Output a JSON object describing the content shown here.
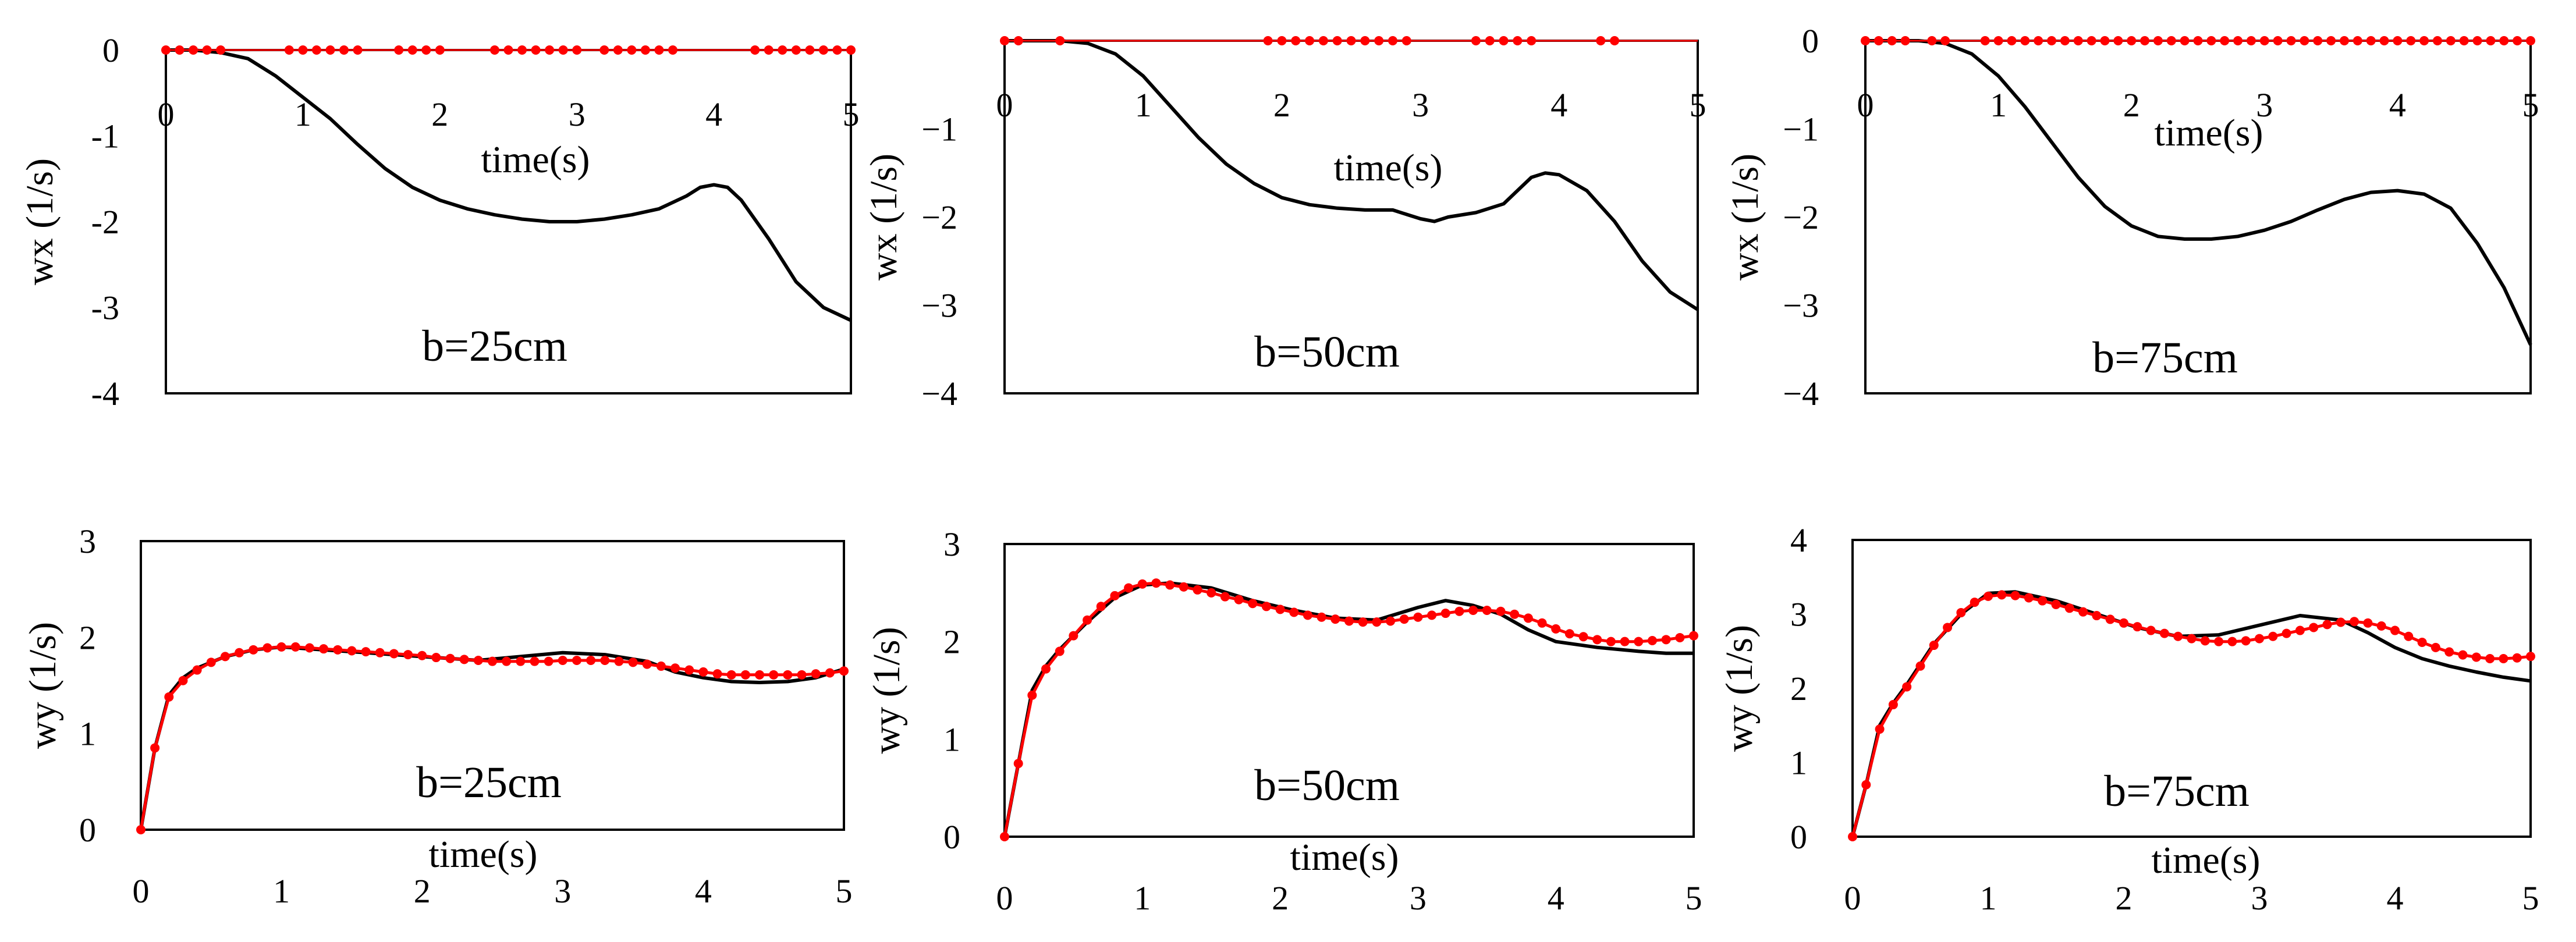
{
  "colors": {
    "measured": "#000000",
    "simulated": "#ff0000",
    "background": "#ffffff"
  },
  "chart_data": [
    {
      "type": "line",
      "annotation": "b=25cm",
      "xlabel": "time(s)",
      "ylabel": "wx (1/s)",
      "xlim": [
        0,
        5
      ],
      "ylim": [
        -4,
        0
      ],
      "xticks": [
        "0",
        "1",
        "2",
        "3",
        "4",
        "5"
      ],
      "yticks": [
        "0",
        "-1",
        "-2",
        "-3",
        "-4"
      ],
      "series": [
        {
          "name": "measured",
          "x": [
            0,
            0.2,
            0.4,
            0.6,
            0.8,
            1.0,
            1.2,
            1.4,
            1.6,
            1.8,
            2.0,
            2.2,
            2.4,
            2.6,
            2.8,
            3.0,
            3.2,
            3.4,
            3.6,
            3.8,
            3.9,
            4.0,
            4.1,
            4.2,
            4.4,
            4.6,
            4.8,
            5.0
          ],
          "y": [
            0,
            0,
            -0.03,
            -0.1,
            -0.3,
            -0.55,
            -0.8,
            -1.1,
            -1.38,
            -1.6,
            -1.75,
            -1.85,
            -1.92,
            -1.97,
            -2.0,
            -2.0,
            -1.97,
            -1.92,
            -1.85,
            -1.7,
            -1.6,
            -1.57,
            -1.6,
            -1.75,
            -2.2,
            -2.7,
            -3.0,
            -3.15
          ]
        },
        {
          "name": "simulated",
          "x": [
            0,
            0.1,
            0.2,
            0.3,
            0.4,
            0.9,
            1.0,
            1.1,
            1.2,
            1.3,
            1.4,
            1.7,
            1.8,
            1.9,
            2.0,
            2.4,
            2.5,
            2.6,
            2.7,
            2.8,
            2.9,
            3.0,
            3.2,
            3.3,
            3.4,
            3.5,
            3.6,
            3.7,
            4.3,
            4.4,
            4.5,
            4.6,
            4.7,
            4.8,
            4.9,
            5.0
          ],
          "y": [
            0,
            0,
            0,
            0,
            0,
            0,
            0,
            0,
            0,
            0,
            0,
            0,
            0,
            0,
            0,
            0,
            0,
            0,
            0,
            0,
            0,
            0,
            0,
            0,
            0,
            0,
            0,
            0,
            0,
            0,
            0,
            0,
            0,
            0,
            0,
            0
          ]
        }
      ]
    },
    {
      "type": "line",
      "annotation": "b=50cm",
      "xlabel": "time(s)",
      "ylabel": "wx (1/s)",
      "xlim": [
        0,
        5
      ],
      "ylim": [
        -4,
        0
      ],
      "xticks": [
        "0",
        "1",
        "2",
        "3",
        "4",
        "5"
      ],
      "yticks": [
        "−1",
        "−2",
        "−3",
        "−4"
      ],
      "series": [
        {
          "name": "measured",
          "x": [
            0,
            0.2,
            0.4,
            0.6,
            0.8,
            1.0,
            1.2,
            1.4,
            1.6,
            1.8,
            2.0,
            2.2,
            2.4,
            2.6,
            2.8,
            2.9,
            3.0,
            3.1,
            3.2,
            3.4,
            3.6,
            3.7,
            3.8,
            3.9,
            4.0,
            4.2,
            4.4,
            4.6,
            4.8,
            5.0
          ],
          "y": [
            0,
            0,
            0,
            -0.03,
            -0.15,
            -0.4,
            -0.75,
            -1.1,
            -1.4,
            -1.62,
            -1.78,
            -1.86,
            -1.9,
            -1.92,
            -1.92,
            -1.97,
            -2.02,
            -2.05,
            -2.0,
            -1.95,
            -1.85,
            -1.7,
            -1.55,
            -1.5,
            -1.52,
            -1.7,
            -2.05,
            -2.5,
            -2.85,
            -3.05
          ]
        },
        {
          "name": "simulated",
          "x": [
            0,
            0.1,
            0.4,
            1.9,
            2.0,
            2.1,
            2.2,
            2.3,
            2.4,
            2.5,
            2.6,
            2.7,
            2.8,
            2.9,
            3.4,
            3.5,
            3.6,
            3.7,
            3.8,
            4.3,
            4.4
          ],
          "y": [
            0,
            0,
            0,
            0,
            0,
            0,
            0,
            0,
            0,
            0,
            0,
            0,
            0,
            0,
            0,
            0,
            0,
            0,
            0,
            0,
            0
          ]
        }
      ]
    },
    {
      "type": "line",
      "annotation": "b=75cm",
      "xlabel": "time(s)",
      "ylabel": "wx (1/s)",
      "xlim": [
        0,
        5
      ],
      "ylim": [
        -4,
        0
      ],
      "xticks": [
        "0",
        "1",
        "2",
        "3",
        "4",
        "5"
      ],
      "yticks": [
        "0",
        "−1",
        "−2",
        "−3",
        "−4"
      ],
      "series": [
        {
          "name": "measured",
          "x": [
            0,
            0.2,
            0.4,
            0.6,
            0.8,
            1.0,
            1.2,
            1.4,
            1.6,
            1.8,
            2.0,
            2.2,
            2.4,
            2.6,
            2.8,
            3.0,
            3.2,
            3.4,
            3.6,
            3.8,
            4.0,
            4.2,
            4.4,
            4.6,
            4.8,
            5.0
          ],
          "y": [
            0,
            0,
            0,
            -0.03,
            -0.15,
            -0.4,
            -0.75,
            -1.15,
            -1.55,
            -1.88,
            -2.1,
            -2.22,
            -2.25,
            -2.25,
            -2.22,
            -2.15,
            -2.05,
            -1.92,
            -1.8,
            -1.72,
            -1.7,
            -1.74,
            -1.9,
            -2.3,
            -2.8,
            -3.45
          ]
        },
        {
          "name": "simulated",
          "x": [
            0,
            0.1,
            0.2,
            0.3,
            0.5,
            0.6,
            0.9,
            1.0,
            1.1,
            1.2,
            1.3,
            1.4,
            1.5,
            1.6,
            1.7,
            1.8,
            1.9,
            2.0,
            2.1,
            2.2,
            2.3,
            2.4,
            2.5,
            2.6,
            2.7,
            2.8,
            2.9,
            3.0,
            3.1,
            3.2,
            3.3,
            3.4,
            3.5,
            3.6,
            3.7,
            3.8,
            3.9,
            4.0,
            4.1,
            4.2,
            4.3,
            4.4,
            4.5,
            4.6,
            4.7,
            4.8,
            4.9,
            5.0
          ],
          "y": [
            0,
            0,
            0,
            0,
            0,
            0,
            0,
            0,
            0,
            0,
            0,
            0,
            0,
            0,
            0,
            0,
            0,
            0,
            0,
            0,
            0,
            0,
            0,
            0,
            0,
            0,
            0,
            0,
            0,
            0,
            0,
            0,
            0,
            0,
            0,
            0,
            0,
            0,
            0,
            0,
            0,
            0,
            0,
            0,
            0,
            0,
            0,
            0
          ]
        }
      ]
    },
    {
      "type": "line",
      "annotation": "b=25cm",
      "xlabel": "time(s)",
      "ylabel": "wy (1/s)",
      "xlim": [
        0,
        5
      ],
      "ylim": [
        0,
        3
      ],
      "xticks": [
        "0",
        "1",
        "2",
        "3",
        "4",
        "5"
      ],
      "yticks": [
        "0",
        "1",
        "2",
        "3"
      ],
      "series": [
        {
          "name": "measured",
          "x": [
            0,
            0.1,
            0.2,
            0.3,
            0.4,
            0.6,
            0.8,
            1.0,
            1.2,
            1.5,
            1.8,
            2.1,
            2.4,
            2.7,
            3.0,
            3.3,
            3.6,
            3.8,
            4.0,
            4.2,
            4.4,
            4.6,
            4.8,
            5.0
          ],
          "y": [
            0,
            0.85,
            1.4,
            1.58,
            1.68,
            1.8,
            1.87,
            1.9,
            1.88,
            1.85,
            1.82,
            1.79,
            1.76,
            1.8,
            1.84,
            1.82,
            1.75,
            1.64,
            1.58,
            1.54,
            1.53,
            1.54,
            1.58,
            1.67
          ]
        },
        {
          "name": "simulated",
          "x": [
            0,
            0.1,
            0.2,
            0.3,
            0.4,
            0.5,
            0.6,
            0.7,
            0.8,
            0.9,
            1.0,
            1.1,
            1.2,
            1.3,
            1.4,
            1.5,
            1.6,
            1.7,
            1.8,
            1.9,
            2.0,
            2.1,
            2.2,
            2.3,
            2.4,
            2.5,
            2.6,
            2.7,
            2.8,
            2.9,
            3.0,
            3.1,
            3.2,
            3.3,
            3.4,
            3.5,
            3.6,
            3.7,
            3.8,
            3.9,
            4.0,
            4.1,
            4.2,
            4.3,
            4.4,
            4.5,
            4.6,
            4.7,
            4.8,
            4.9,
            5.0
          ],
          "y": [
            0,
            0.85,
            1.38,
            1.55,
            1.66,
            1.74,
            1.8,
            1.84,
            1.87,
            1.89,
            1.9,
            1.9,
            1.89,
            1.88,
            1.87,
            1.86,
            1.85,
            1.84,
            1.83,
            1.82,
            1.81,
            1.79,
            1.78,
            1.77,
            1.76,
            1.75,
            1.75,
            1.75,
            1.75,
            1.75,
            1.76,
            1.76,
            1.76,
            1.76,
            1.75,
            1.74,
            1.72,
            1.7,
            1.68,
            1.66,
            1.64,
            1.62,
            1.61,
            1.61,
            1.61,
            1.61,
            1.61,
            1.61,
            1.62,
            1.63,
            1.65
          ]
        }
      ]
    },
    {
      "type": "line",
      "annotation": "b=50cm",
      "xlabel": "time(s)",
      "ylabel": "wy (1/s)",
      "xlim": [
        0,
        5
      ],
      "ylim": [
        0,
        3
      ],
      "xticks": [
        "0",
        "1",
        "2",
        "3",
        "4",
        "5"
      ],
      "yticks": [
        "0",
        "1",
        "2",
        "3"
      ],
      "series": [
        {
          "name": "measured",
          "x": [
            0,
            0.1,
            0.2,
            0.3,
            0.4,
            0.6,
            0.8,
            1.0,
            1.2,
            1.5,
            1.8,
            2.1,
            2.4,
            2.7,
            3.0,
            3.2,
            3.4,
            3.6,
            3.8,
            4.0,
            4.3,
            4.6,
            4.8,
            5.0
          ],
          "y": [
            0,
            0.75,
            1.5,
            1.75,
            1.92,
            2.2,
            2.45,
            2.58,
            2.6,
            2.55,
            2.42,
            2.32,
            2.24,
            2.22,
            2.35,
            2.42,
            2.37,
            2.28,
            2.12,
            2.0,
            1.94,
            1.9,
            1.88,
            1.88
          ]
        },
        {
          "name": "simulated",
          "x": [
            0,
            0.1,
            0.2,
            0.3,
            0.4,
            0.5,
            0.6,
            0.7,
            0.8,
            0.9,
            1.0,
            1.1,
            1.2,
            1.3,
            1.4,
            1.5,
            1.6,
            1.7,
            1.8,
            1.9,
            2.0,
            2.1,
            2.2,
            2.3,
            2.4,
            2.5,
            2.6,
            2.7,
            2.8,
            2.9,
            3.0,
            3.1,
            3.2,
            3.3,
            3.4,
            3.5,
            3.6,
            3.7,
            3.8,
            3.9,
            4.0,
            4.1,
            4.2,
            4.3,
            4.4,
            4.5,
            4.6,
            4.7,
            4.8,
            4.9,
            5.0
          ],
          "y": [
            0,
            0.75,
            1.45,
            1.72,
            1.9,
            2.06,
            2.22,
            2.36,
            2.47,
            2.55,
            2.59,
            2.6,
            2.58,
            2.56,
            2.53,
            2.5,
            2.46,
            2.43,
            2.39,
            2.36,
            2.33,
            2.3,
            2.27,
            2.25,
            2.23,
            2.21,
            2.2,
            2.2,
            2.21,
            2.23,
            2.25,
            2.27,
            2.29,
            2.31,
            2.32,
            2.32,
            2.31,
            2.28,
            2.24,
            2.19,
            2.13,
            2.08,
            2.05,
            2.02,
            2.0,
            2.0,
            2.0,
            2.01,
            2.02,
            2.04,
            2.06
          ]
        }
      ]
    },
    {
      "type": "line",
      "annotation": "b=75cm",
      "xlabel": "time(s)",
      "ylabel": "wy (1/s)",
      "xlim": [
        0,
        5
      ],
      "ylim": [
        0,
        4
      ],
      "xticks": [
        "0",
        "1",
        "2",
        "3",
        "4",
        "5"
      ],
      "yticks": [
        "0",
        "1",
        "2",
        "3",
        "4"
      ],
      "series": [
        {
          "name": "measured",
          "x": [
            0,
            0.1,
            0.2,
            0.3,
            0.4,
            0.6,
            0.8,
            1.0,
            1.2,
            1.5,
            1.8,
            2.1,
            2.4,
            2.7,
            3.0,
            3.3,
            3.6,
            3.8,
            4.0,
            4.2,
            4.4,
            4.6,
            4.8,
            5.0
          ],
          "y": [
            0,
            0.7,
            1.5,
            1.8,
            2.05,
            2.6,
            3.0,
            3.28,
            3.3,
            3.18,
            3.0,
            2.82,
            2.7,
            2.72,
            2.85,
            2.98,
            2.92,
            2.75,
            2.55,
            2.4,
            2.3,
            2.22,
            2.15,
            2.1
          ]
        },
        {
          "name": "simulated",
          "x": [
            0,
            0.1,
            0.2,
            0.3,
            0.4,
            0.5,
            0.6,
            0.7,
            0.8,
            0.9,
            1.0,
            1.1,
            1.2,
            1.3,
            1.4,
            1.5,
            1.6,
            1.7,
            1.8,
            1.9,
            2.0,
            2.1,
            2.2,
            2.3,
            2.4,
            2.5,
            2.6,
            2.7,
            2.8,
            2.9,
            3.0,
            3.1,
            3.2,
            3.3,
            3.4,
            3.5,
            3.6,
            3.7,
            3.8,
            3.9,
            4.0,
            4.1,
            4.2,
            4.3,
            4.4,
            4.5,
            4.6,
            4.7,
            4.8,
            4.9,
            5.0
          ],
          "y": [
            0,
            0.7,
            1.45,
            1.78,
            2.02,
            2.3,
            2.58,
            2.82,
            3.02,
            3.16,
            3.24,
            3.26,
            3.25,
            3.22,
            3.18,
            3.13,
            3.08,
            3.03,
            2.98,
            2.93,
            2.88,
            2.83,
            2.78,
            2.74,
            2.7,
            2.67,
            2.64,
            2.63,
            2.63,
            2.64,
            2.67,
            2.7,
            2.74,
            2.78,
            2.82,
            2.86,
            2.89,
            2.9,
            2.88,
            2.84,
            2.78,
            2.7,
            2.62,
            2.55,
            2.49,
            2.45,
            2.42,
            2.4,
            2.4,
            2.41,
            2.43
          ]
        }
      ]
    }
  ]
}
